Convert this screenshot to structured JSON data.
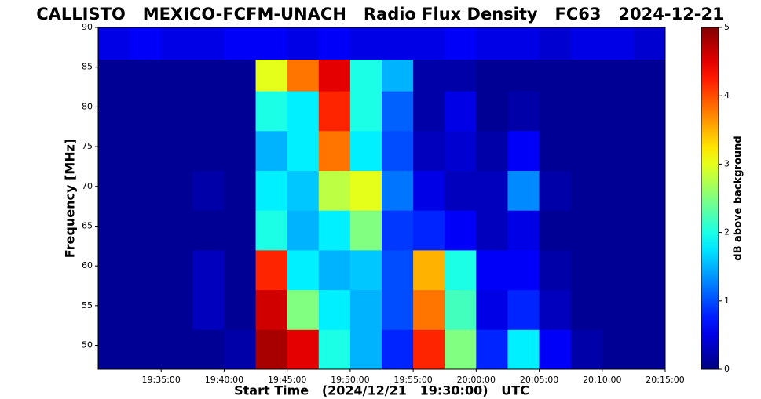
{
  "chart_data": {
    "type": "spectrogram",
    "title": "CALLISTO   MEXICO-FCFM-UNACH   Radio Flux Density   FC63   2024-12-21",
    "x_label": "Start Time   (2024/12/21   19:30:00)   UTC",
    "y_label": "Frequency [MHz]",
    "colorbar_label": "dB above background",
    "colormap": "jet",
    "x_bins": [
      0,
      2.5,
      5,
      7.5,
      10,
      12.5,
      15,
      17.5,
      20,
      22.5,
      25,
      27.5,
      30,
      32.5,
      35,
      37.5,
      40,
      42.5,
      45
    ],
    "y_bins": [
      47,
      52,
      57,
      62,
      67,
      72,
      77,
      82,
      86,
      90
    ],
    "values": [
      [
        0.1,
        0.1,
        0.1,
        0.1,
        0.2,
        4.8,
        4.5,
        2.0,
        1.5,
        0.8,
        4.2,
        2.5,
        0.8,
        1.8,
        0.6,
        0.2,
        0.1,
        0.1
      ],
      [
        0.1,
        0.1,
        0.1,
        0.3,
        0.1,
        4.6,
        2.5,
        1.8,
        1.5,
        1.0,
        3.8,
        2.2,
        0.5,
        0.8,
        0.3,
        0.1,
        0.1,
        0.1
      ],
      [
        0.1,
        0.1,
        0.1,
        0.3,
        0.1,
        4.2,
        1.8,
        1.5,
        1.6,
        1.0,
        3.5,
        2.0,
        0.6,
        0.6,
        0.2,
        0.1,
        0.1,
        0.1
      ],
      [
        0.1,
        0.1,
        0.1,
        0.1,
        0.1,
        2.0,
        1.5,
        1.8,
        2.5,
        0.9,
        0.8,
        0.6,
        0.3,
        0.5,
        0.1,
        0.1,
        0.1,
        0.1
      ],
      [
        0.1,
        0.1,
        0.1,
        0.2,
        0.1,
        1.8,
        1.6,
        2.8,
        3.0,
        1.2,
        0.5,
        0.3,
        0.3,
        1.3,
        0.2,
        0.1,
        0.1,
        0.1
      ],
      [
        0.1,
        0.1,
        0.1,
        0.1,
        0.1,
        1.5,
        1.8,
        3.8,
        1.8,
        1.0,
        0.3,
        0.4,
        0.2,
        0.6,
        0.1,
        0.1,
        0.1,
        0.1
      ],
      [
        0.1,
        0.1,
        0.1,
        0.1,
        0.1,
        2.0,
        1.8,
        4.2,
        2.0,
        1.1,
        0.2,
        0.5,
        0.1,
        0.2,
        0.1,
        0.1,
        0.1,
        0.1
      ],
      [
        0.1,
        0.1,
        0.1,
        0.1,
        0.1,
        3.0,
        3.8,
        4.5,
        2.0,
        1.5,
        0.2,
        0.2,
        0.1,
        0.1,
        0.1,
        0.1,
        0.1,
        0.1
      ],
      [
        0.5,
        0.6,
        0.5,
        0.5,
        0.6,
        0.6,
        0.5,
        0.6,
        0.5,
        0.5,
        0.5,
        0.6,
        0.5,
        0.5,
        0.4,
        0.5,
        0.5,
        0.4
      ]
    ],
    "xlim": [
      0,
      45
    ],
    "xticks": [
      {
        "value": 5,
        "label": "19:35:00"
      },
      {
        "value": 10,
        "label": "19:40:00"
      },
      {
        "value": 15,
        "label": "19:45:00"
      },
      {
        "value": 20,
        "label": "19:50:00"
      },
      {
        "value": 25,
        "label": "19:55:00"
      },
      {
        "value": 30,
        "label": "20:00:00"
      },
      {
        "value": 35,
        "label": "20:05:00"
      },
      {
        "value": 40,
        "label": "20:10:00"
      },
      {
        "value": 45,
        "label": "20:15:00"
      }
    ],
    "ylim": [
      47,
      90
    ],
    "yticks": [
      50,
      55,
      60,
      65,
      70,
      75,
      80,
      85,
      90
    ],
    "clim": [
      0,
      5
    ],
    "cticks": [
      0,
      1,
      2,
      3,
      4,
      5
    ]
  }
}
